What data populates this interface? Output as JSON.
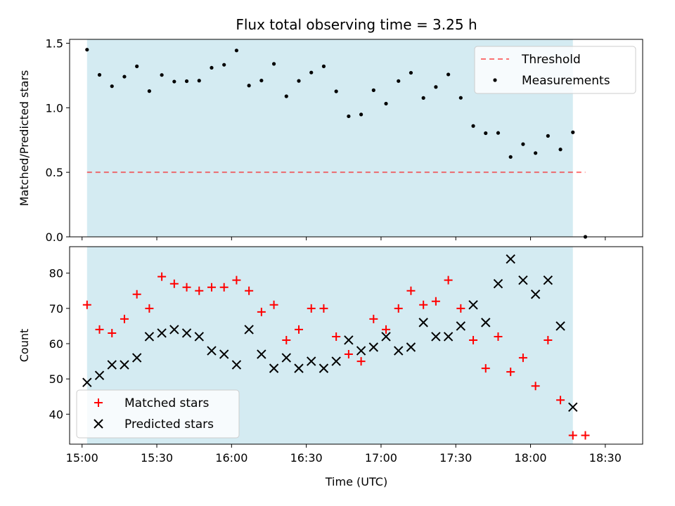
{
  "chart_data": {
    "title": "Flux total observing time = 3.25 h",
    "xlabel": "Time (UTC)",
    "x_unit": "minutes after 15:00 UTC",
    "xlim": [
      -5,
      225
    ],
    "x_ticks": [
      0,
      30,
      60,
      90,
      120,
      150,
      180,
      210
    ],
    "x_tick_labels": [
      "15:00",
      "15:30",
      "16:00",
      "16:30",
      "17:00",
      "17:30",
      "18:00",
      "18:30"
    ],
    "shade": {
      "from": 2,
      "to": 197,
      "color": "#add8e6"
    },
    "x": [
      2,
      7,
      12,
      17,
      22,
      27,
      32,
      37,
      42,
      47,
      52,
      57,
      62,
      67,
      72,
      77,
      82,
      87,
      92,
      97,
      102,
      107,
      112,
      117,
      122,
      127,
      132,
      137,
      142,
      147,
      152,
      157,
      162,
      167,
      172,
      177,
      182,
      187,
      192,
      197,
      202
    ],
    "top": {
      "type": "scatter",
      "ylabel": "Matched/Predicted stars",
      "ylim": [
        0,
        1.53
      ],
      "y_ticks": [
        0.0,
        0.5,
        1.0,
        1.5
      ],
      "y_tick_labels": [
        "0.0",
        "0.5",
        "1.0",
        "1.5"
      ],
      "threshold": {
        "name": "Threshold",
        "value": 0.5,
        "color": "#ff0000"
      },
      "series": [
        {
          "name": "Measurements",
          "color": "#000000",
          "values": [
            1.45,
            1.255,
            1.167,
            1.241,
            1.321,
            1.129,
            1.254,
            1.203,
            1.206,
            1.21,
            1.31,
            1.333,
            1.444,
            1.172,
            1.211,
            1.34,
            1.089,
            1.208,
            1.273,
            1.321,
            1.127,
            0.934,
            0.948,
            1.136,
            1.032,
            1.207,
            1.271,
            1.076,
            1.161,
            1.258,
            1.077,
            0.859,
            0.803,
            0.805,
            0.619,
            0.718,
            0.649,
            0.782,
            0.677,
            0.81,
            0.0
          ]
        }
      ],
      "legend": {
        "position": "top-right",
        "labels": [
          "Threshold",
          "Measurements"
        ]
      }
    },
    "bottom": {
      "type": "scatter",
      "ylabel": "Count",
      "ylim": [
        31.5,
        87.5
      ],
      "y_ticks": [
        40,
        50,
        60,
        70,
        80
      ],
      "y_tick_labels": [
        "40",
        "50",
        "60",
        "70",
        "80"
      ],
      "series": [
        {
          "name": "Matched stars",
          "marker": "plus",
          "color": "#ff0000",
          "values": [
            71,
            64,
            63,
            67,
            74,
            70,
            79,
            77,
            76,
            75,
            76,
            76,
            78,
            75,
            69,
            71,
            61,
            64,
            70,
            70,
            62,
            57,
            55,
            67,
            64,
            70,
            75,
            71,
            72,
            78,
            70,
            61,
            53,
            62,
            52,
            56,
            48,
            61,
            44,
            34,
            34
          ]
        },
        {
          "name": "Predicted stars",
          "marker": "x",
          "color": "#000000",
          "values": [
            49,
            51,
            54,
            54,
            56,
            62,
            63,
            64,
            63,
            62,
            58,
            57,
            54,
            64,
            57,
            53,
            56,
            53,
            55,
            53,
            55,
            61,
            58,
            59,
            62,
            58,
            59,
            66,
            62,
            62,
            65,
            71,
            66,
            77,
            84,
            78,
            74,
            78,
            65,
            42,
            null
          ]
        }
      ],
      "legend": {
        "position": "bottom-left",
        "labels": [
          "Matched stars",
          "Predicted stars"
        ]
      }
    }
  }
}
